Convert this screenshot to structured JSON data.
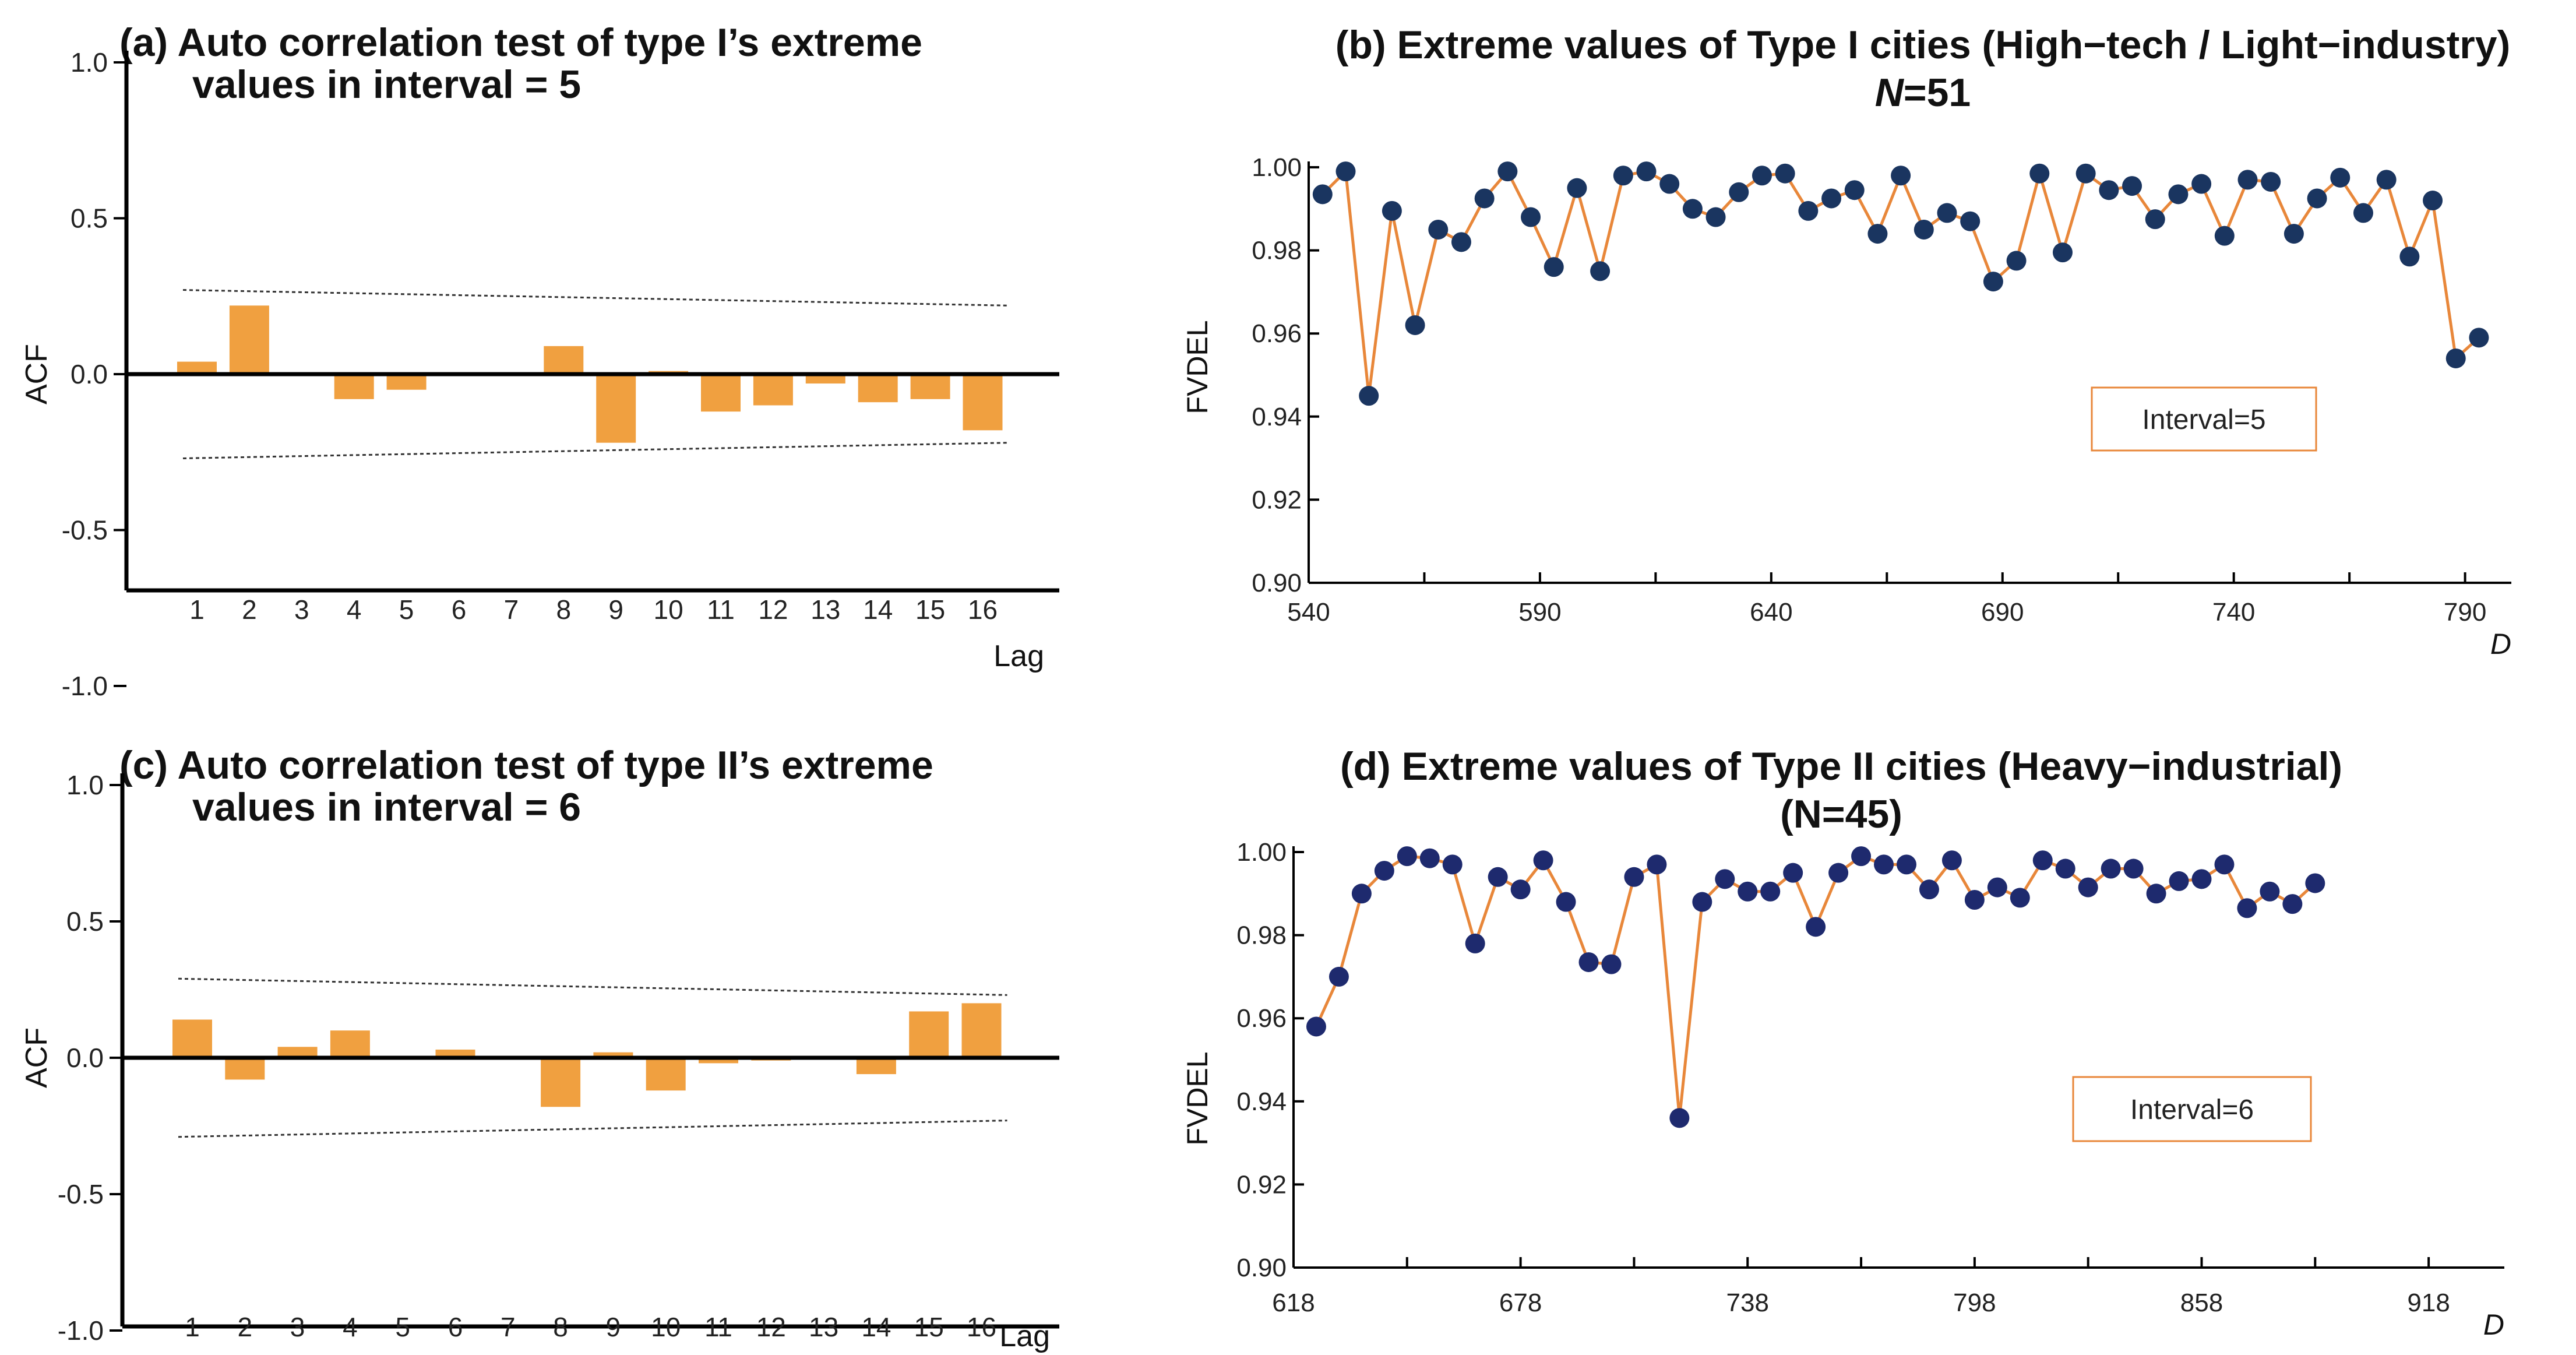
{
  "colors": {
    "bar": "#F0A040",
    "line": "#E8873A",
    "dot": "#1A3560",
    "dot_d": "#1E2A6E",
    "axis": "#000000",
    "box": "#E8873A"
  },
  "chart_data": [
    {
      "id": "a",
      "type": "bar",
      "title_line1": "(a) Auto correlation test of type I’s extreme",
      "title_line2": "values in interval = 5",
      "ylabel": "ACF",
      "xlabel": "Lag",
      "ylim": [
        -1.0,
        1.0
      ],
      "yticks": [
        "1.0",
        "0.5",
        "0.0",
        "-0.5",
        "-1.0"
      ],
      "categories": [
        "1",
        "2",
        "3",
        "4",
        "5",
        "6",
        "7",
        "8",
        "9",
        "10",
        "11",
        "12",
        "13",
        "14",
        "15",
        "16"
      ],
      "values": [
        0.04,
        0.22,
        0.0,
        -0.08,
        -0.05,
        0.0,
        0.0,
        0.09,
        -0.22,
        0.01,
        -0.12,
        -0.1,
        -0.03,
        -0.09,
        -0.08,
        -0.18
      ],
      "conf_band": [
        0.27,
        0.22
      ]
    },
    {
      "id": "b",
      "type": "line",
      "title_line1": "(b) Extreme values of Type I cities (High−tech / Light−industry)",
      "title_n_italic": "N",
      "title_n_rest": "=51",
      "ylabel": "FVDEL",
      "xlabel": "D",
      "xlim": [
        540,
        800
      ],
      "ylim": [
        0.9,
        1.0
      ],
      "xticks": [
        "540",
        "590",
        "640",
        "690",
        "740",
        "790"
      ],
      "yticks": [
        "1.00",
        "0.98",
        "0.96",
        "0.94",
        "0.92",
        "0.90"
      ],
      "annotation": "Interval=5",
      "x": [
        543,
        548,
        553,
        558,
        563,
        568,
        573,
        578,
        583,
        588,
        593,
        598,
        603,
        608,
        613,
        618,
        623,
        628,
        633,
        638,
        643,
        648,
        653,
        658,
        663,
        668,
        673,
        678,
        683,
        688,
        693,
        698,
        703,
        708,
        713,
        718,
        723,
        728,
        733,
        738,
        743,
        748,
        753,
        758,
        763,
        768,
        773,
        778,
        783,
        788,
        793
      ],
      "y": [
        0.9935,
        0.999,
        0.945,
        0.9895,
        0.962,
        0.985,
        0.982,
        0.9925,
        0.999,
        0.988,
        0.976,
        0.995,
        0.975,
        0.998,
        0.999,
        0.996,
        0.99,
        0.988,
        0.994,
        0.998,
        0.9985,
        0.9895,
        0.9925,
        0.9945,
        0.984,
        0.998,
        0.985,
        0.989,
        0.987,
        0.9725,
        0.9775,
        0.9985,
        0.9795,
        0.9985,
        0.9945,
        0.9955,
        0.9875,
        0.9935,
        0.996,
        0.9835,
        0.997,
        0.9965,
        0.984,
        0.9925,
        0.9975,
        0.989,
        0.997,
        0.9785,
        0.992,
        0.954,
        0.959
      ]
    },
    {
      "id": "c",
      "type": "bar",
      "title_line1": "(c) Auto correlation test of type II’s extreme",
      "title_line2": "values in interval = 6",
      "ylabel": "ACF",
      "xlabel": "Lag",
      "ylim": [
        -1.0,
        1.0
      ],
      "yticks": [
        "1.0",
        "0.5",
        "0.0",
        "-0.5",
        "-1.0"
      ],
      "categories": [
        "1",
        "2",
        "3",
        "4",
        "5",
        "6",
        "7",
        "8",
        "9",
        "10",
        "11",
        "12",
        "13",
        "14",
        "15",
        "16"
      ],
      "values": [
        0.14,
        -0.08,
        0.04,
        0.1,
        0.0,
        0.03,
        0.0,
        -0.18,
        0.02,
        -0.12,
        -0.02,
        -0.01,
        0.0,
        -0.06,
        0.17,
        0.2
      ],
      "conf_band": [
        0.29,
        0.23
      ]
    },
    {
      "id": "d",
      "type": "line",
      "title_line1": "(d) Extreme values of Type II cities (Heavy−industrial)",
      "title_line2": "(N=45)",
      "ylabel": "FVDEL",
      "xlabel": "D",
      "xlim": [
        618,
        938
      ],
      "ylim": [
        0.9,
        1.0
      ],
      "xticks": [
        "618",
        "678",
        "738",
        "798",
        "858",
        "918"
      ],
      "yticks": [
        "1.00",
        "0.98",
        "0.96",
        "0.94",
        "0.92",
        "0.90"
      ],
      "annotation": "Interval=6",
      "x": [
        624,
        630,
        636,
        642,
        648,
        654,
        660,
        666,
        672,
        678,
        684,
        690,
        696,
        702,
        708,
        714,
        720,
        726,
        732,
        738,
        744,
        750,
        756,
        762,
        768,
        774,
        780,
        786,
        792,
        798,
        804,
        810,
        816,
        822,
        828,
        834,
        840,
        846,
        852,
        858,
        864,
        870,
        876,
        882,
        888
      ],
      "y": [
        0.958,
        0.97,
        0.99,
        0.9955,
        0.999,
        0.9985,
        0.997,
        0.978,
        0.994,
        0.991,
        0.998,
        0.988,
        0.9735,
        0.973,
        0.994,
        0.997,
        0.936,
        0.988,
        0.9935,
        0.9905,
        0.9905,
        0.995,
        0.982,
        0.995,
        0.999,
        0.997,
        0.997,
        0.991,
        0.998,
        0.9885,
        0.9915,
        0.989,
        0.998,
        0.996,
        0.9915,
        0.996,
        0.996,
        0.99,
        0.993,
        0.9935,
        0.997,
        0.9865,
        0.9905,
        0.9875,
        0.9925
      ]
    }
  ]
}
